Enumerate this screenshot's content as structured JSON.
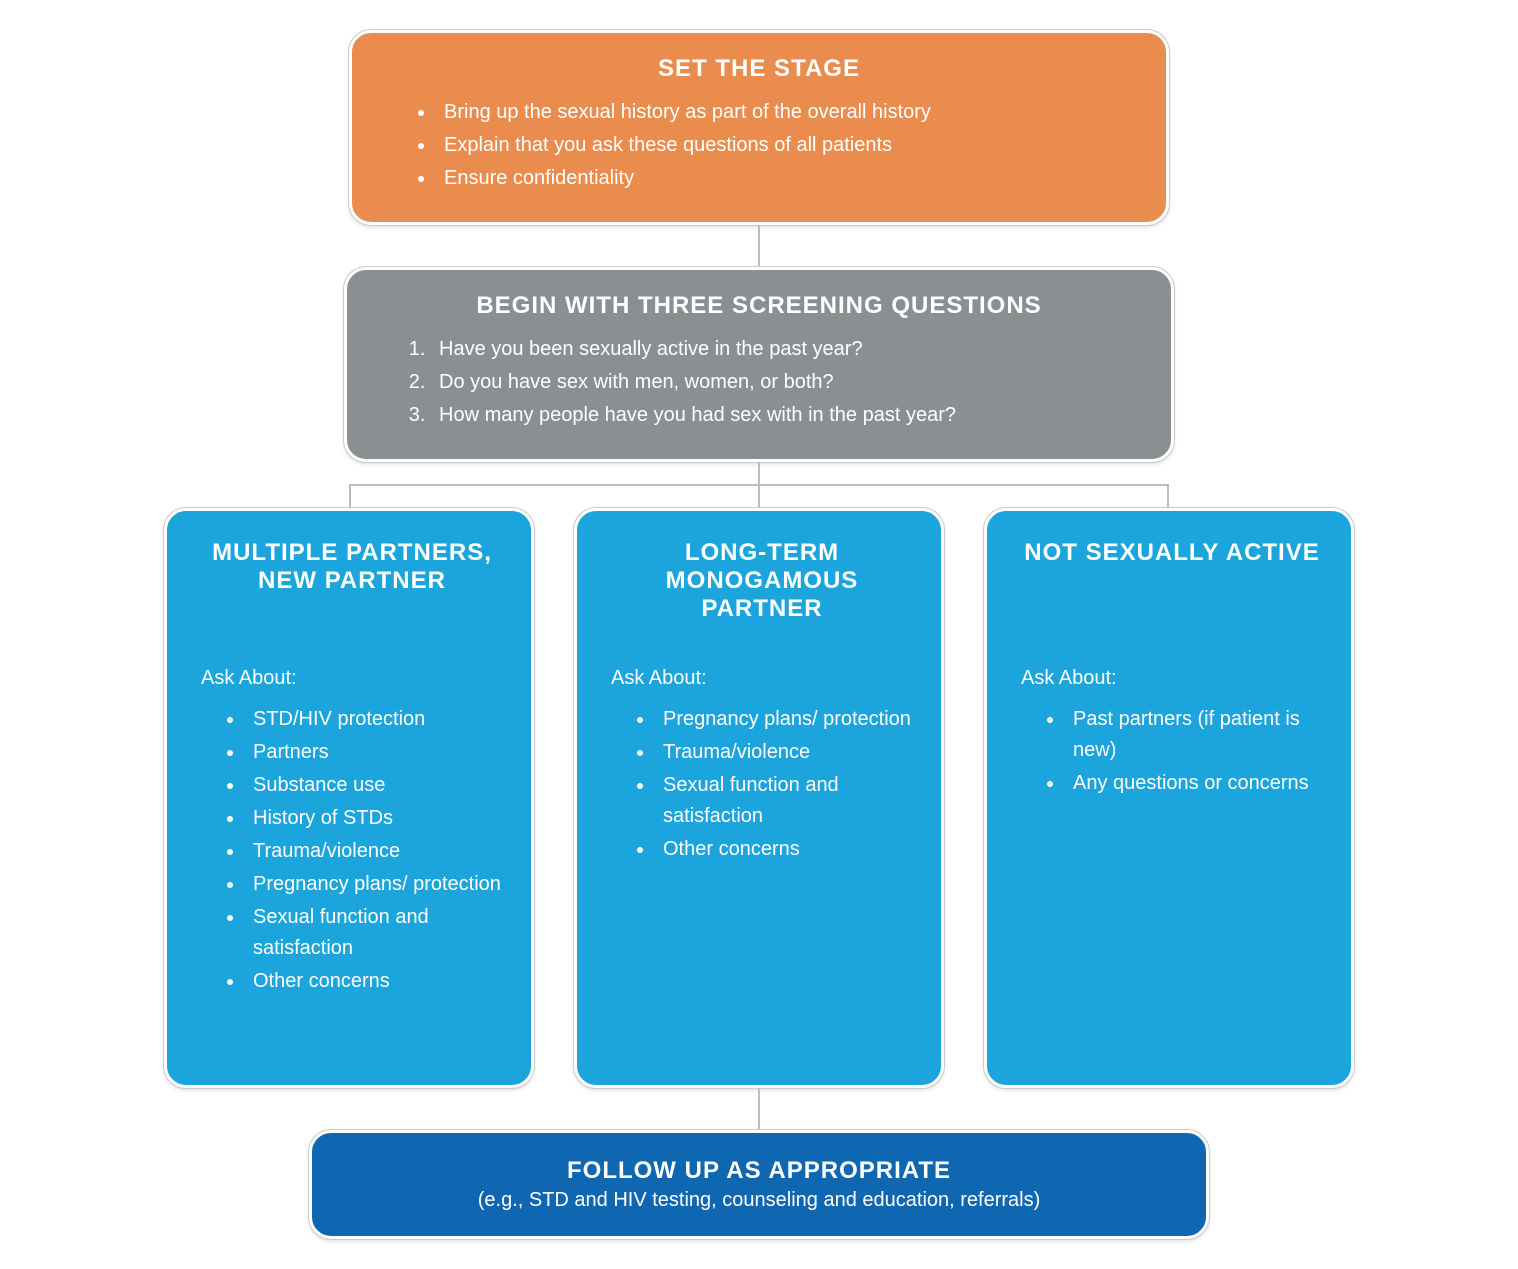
{
  "flowchart": {
    "type": "flowchart",
    "background_color": "#ffffff",
    "connector_color": "#bdbdbd",
    "node_border_color": "#ffffff",
    "node_outline_color": "#cccccc",
    "title_fontsize": 24,
    "body_fontsize": 20,
    "border_radius": 22,
    "nodes": {
      "stage": {
        "color": "#ea8c4d",
        "title": "SET THE STAGE",
        "bullets": [
          "Bring up the sexual history as part of the overall history",
          "Explain that you ask these questions of all patients",
          "Ensure confidentiality"
        ]
      },
      "screening": {
        "color": "#8b8f92",
        "title": "BEGIN WITH THREE SCREENING QUESTIONS",
        "numbered": [
          "Have you been sexually active in the past year?",
          "Do you have sex with men, women, or both?",
          "How many people have you had sex with in the past year?"
        ]
      },
      "branch1": {
        "color": "#1ba5dc",
        "title": "MULTIPLE PARTNERS, NEW PARTNER",
        "lead": "Ask About:",
        "bullets": [
          "STD/HIV protection",
          "Partners",
          "Substance use",
          "History of STDs",
          "Trauma/violence",
          "Pregnancy plans/ protection",
          "Sexual function and satisfaction",
          "Other concerns"
        ]
      },
      "branch2": {
        "color": "#1ba5dc",
        "title": "LONG-TERM MONOGAMOUS PARTNER",
        "lead": "Ask About:",
        "bullets": [
          "Pregnancy plans/ protection",
          "Trauma/violence",
          "Sexual function and satisfaction",
          "Other concerns"
        ]
      },
      "branch3": {
        "color": "#1ba5dc",
        "title": "NOT SEXUALLY ACTIVE",
        "lead": "Ask About:",
        "bullets": [
          "Past partners (if patient is new)",
          "Any questions or concerns"
        ]
      },
      "followup": {
        "color": "#0f67b1",
        "title": "FOLLOW UP AS APPROPRIATE",
        "subtitle": "(e.g., STD and HIV testing, counseling and education, referrals)"
      }
    },
    "edges": [
      [
        "stage",
        "screening"
      ],
      [
        "screening",
        "branch1"
      ],
      [
        "screening",
        "branch2"
      ],
      [
        "screening",
        "branch3"
      ],
      [
        "branch2",
        "followup"
      ]
    ]
  }
}
